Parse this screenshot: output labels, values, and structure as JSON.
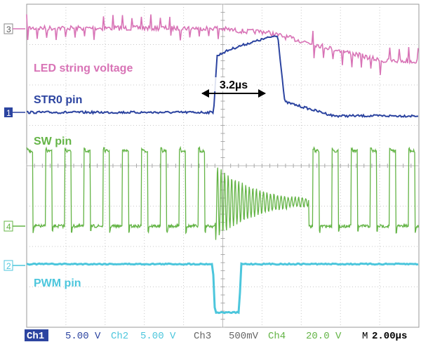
{
  "chart_data": {
    "type": "line",
    "title": "",
    "xlabel": "",
    "ylabel": "",
    "grid": true,
    "time_per_div_us": 2.0,
    "divisions_x": 10,
    "divisions_y": 8,
    "series": [
      {
        "name": "LED string voltage",
        "channel": "3",
        "color": "#d873b6"
      },
      {
        "name": "STR0 pin",
        "channel": "1",
        "color": "#2c44a0"
      },
      {
        "name": "SW pin",
        "channel": "4",
        "color": "#64b446"
      },
      {
        "name": "PWM pin",
        "channel": "2",
        "color": "#4cc6dc"
      }
    ],
    "annotation": {
      "text": "3.2µs",
      "start_us": 9.6,
      "end_us": 12.8
    }
  },
  "status_bar": {
    "ch1_label": "Ch1",
    "ch1_scale": "5.00 V",
    "ch2_label": "Ch2",
    "ch2_scale": "5.00 V",
    "ch3_label": "Ch3",
    "ch3_scale": "500mV",
    "ch4_label": "Ch4",
    "ch4_scale": "20.0 V",
    "time_label": "M",
    "time_scale": "2.00µs"
  },
  "colors": {
    "ch1": "#2c44a0",
    "ch2": "#4cc6dc",
    "ch3": "#d873b6",
    "ch4": "#64b446",
    "grid": "#c8c8c8"
  }
}
